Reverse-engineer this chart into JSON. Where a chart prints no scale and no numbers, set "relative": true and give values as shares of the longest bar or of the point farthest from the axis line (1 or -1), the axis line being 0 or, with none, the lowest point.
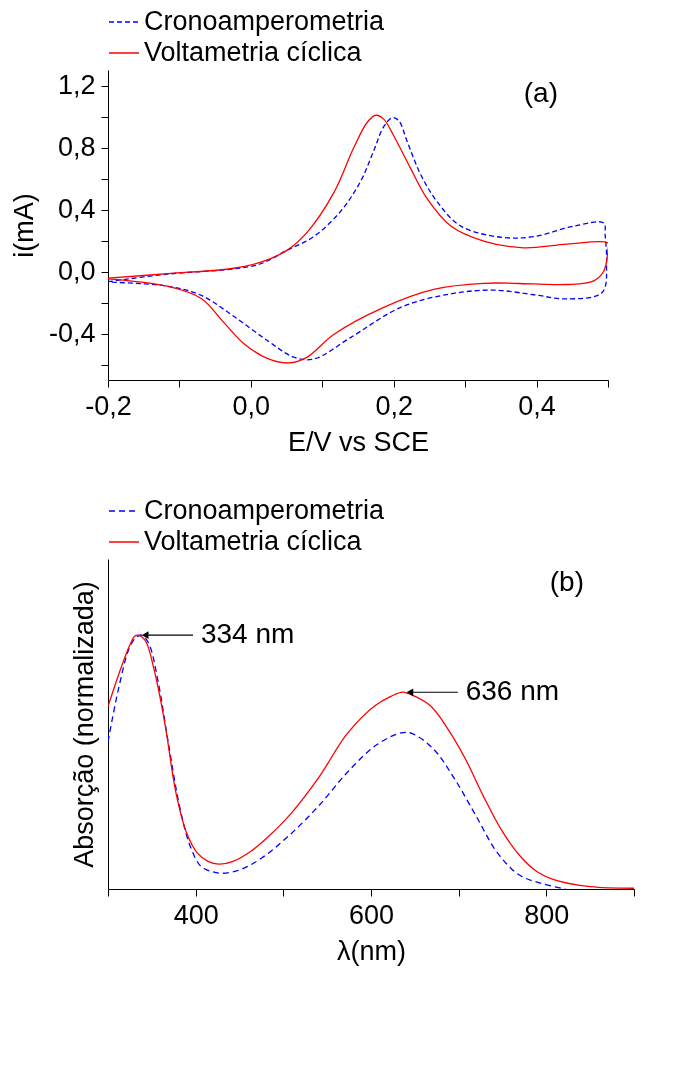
{
  "chart_data": [
    {
      "type": "line",
      "xlabel": "E/V vs SCE",
      "ylabel": "i(mA)",
      "legend": "top",
      "marker": "none",
      "grid": false,
      "xlim": [
        -0.2,
        0.5
      ],
      "ylim": [
        -0.7,
        1.3
      ],
      "xticks": [
        {
          "value": -0.2,
          "label": "-0,2"
        },
        {
          "value": -0.1,
          "label": null
        },
        {
          "value": 0,
          "label": "0,0"
        },
        {
          "value": 0.1,
          "label": null
        },
        {
          "value": 0.2,
          "label": "0,2"
        },
        {
          "value": 0.3,
          "label": null
        },
        {
          "value": 0.4,
          "label": "0,4"
        },
        {
          "value": 0.5,
          "label": null
        }
      ],
      "yticks": [
        {
          "value": -0.6,
          "label": null
        },
        {
          "value": -0.4,
          "label": "-0,4"
        },
        {
          "value": -0.2,
          "label": null
        },
        {
          "value": 0,
          "label": "0,0"
        },
        {
          "value": 0.2,
          "label": null
        },
        {
          "value": 0.4,
          "label": "0,4"
        },
        {
          "value": 0.6,
          "label": null
        },
        {
          "value": 0.8,
          "label": "0,8"
        },
        {
          "value": 1.0,
          "label": null
        },
        {
          "value": 1.2,
          "label": "1,2"
        }
      ],
      "annotations": [
        "(a)"
      ],
      "series": [
        {
          "name": "Cronoamperometria",
          "color": "#0000ff",
          "line_style": "dotted",
          "x": [
            -0.2,
            -0.117,
            -0.024,
            0.014,
            0.051,
            0.088,
            0.126,
            0.154,
            0.172,
            0.186,
            0.198,
            0.207,
            0.219,
            0.238,
            0.261,
            0.294,
            0.35,
            0.396,
            0.452,
            0.494,
            0.496,
            0.498,
            0.492,
            0.443,
            0.396,
            0.34,
            0.28,
            0.21,
            0.14,
            0.088,
            0.06,
            0.023,
            -0.024,
            -0.07,
            -0.117,
            -0.2
          ],
          "values": [
            -0.066,
            -0.017,
            0.017,
            0.05,
            0.138,
            0.225,
            0.39,
            0.585,
            0.779,
            0.934,
            0.992,
            0.973,
            0.837,
            0.623,
            0.449,
            0.293,
            0.221,
            0.225,
            0.293,
            0.313,
            0.235,
            0.06,
            -0.134,
            -0.177,
            -0.15,
            -0.12,
            -0.144,
            -0.231,
            -0.425,
            -0.565,
            -0.552,
            -0.445,
            -0.289,
            -0.153,
            -0.095,
            -0.068
          ]
        },
        {
          "name": "Voltametria cíclica",
          "color": "#ff0000",
          "line_style": "solid",
          "x": [
            -0.2,
            -0.117,
            -0.024,
            0.014,
            0.051,
            0.079,
            0.116,
            0.144,
            0.163,
            0.175,
            0.186,
            0.2,
            0.224,
            0.247,
            0.28,
            0.326,
            0.382,
            0.443,
            0.5,
            0.5,
            0.494,
            0.48,
            0.443,
            0.396,
            0.326,
            0.256,
            0.186,
            0.116,
            0.079,
            0.053,
            0.023,
            -0.01,
            -0.038,
            -0.07,
            -0.117,
            -0.2
          ],
          "values": [
            -0.043,
            -0.014,
            0.021,
            0.06,
            0.138,
            0.254,
            0.507,
            0.798,
            0.963,
            1.008,
            0.983,
            0.876,
            0.662,
            0.468,
            0.293,
            0.196,
            0.153,
            0.177,
            0.183,
            0.138,
            0.002,
            -0.06,
            -0.084,
            -0.08,
            -0.076,
            -0.115,
            -0.231,
            -0.406,
            -0.552,
            -0.59,
            -0.561,
            -0.464,
            -0.328,
            -0.173,
            -0.095,
            -0.047
          ]
        }
      ]
    },
    {
      "type": "line",
      "xlabel": "λ(nm)",
      "ylabel": "Absorção (normalizada)",
      "legend": "top",
      "marker": "none",
      "grid": false,
      "relative": true,
      "xlim": [
        300,
        900
      ],
      "xticks": [
        {
          "value": 300,
          "label": null
        },
        400,
        {
          "value": 500,
          "label": null
        },
        600,
        {
          "value": 700,
          "label": null
        },
        800,
        {
          "value": 900,
          "label": null
        }
      ],
      "annotations": [
        "(b)",
        {
          "text": "334 nm",
          "x": 334,
          "y": 1
        },
        {
          "text": "636 nm",
          "x": 636,
          "y": 0.775
        }
      ],
      "series": [
        {
          "name": "Cronoamperometria",
          "color": "#0000ff",
          "line_style": "dashed",
          "x": [
            300,
            312.2,
            324.5,
            332.6,
            338.7,
            346.9,
            357.1,
            369.3,
            381.5,
            393.8,
            406,
            418.2,
            430.4,
            450.8,
            475.3,
            507.9,
            540.5,
            573.1,
            605.7,
            634.2,
            646.5,
            670.9,
            695.3,
            719.8,
            744.3,
            768.8,
            793.2,
            821.7
          ],
          "values": [
            0.58,
            0.792,
            0.951,
            0.993,
            1.0,
            0.964,
            0.818,
            0.566,
            0.328,
            0.168,
            0.089,
            0.069,
            0.062,
            0.076,
            0.122,
            0.215,
            0.328,
            0.46,
            0.566,
            0.615,
            0.613,
            0.553,
            0.434,
            0.288,
            0.142,
            0.056,
            0.023,
            0.0
          ]
        },
        {
          "name": "Voltametria cíclica",
          "color": "#ff0000",
          "line_style": "solid",
          "x": [
            300,
            312.2,
            324.5,
            330.6,
            334.6,
            342.8,
            353,
            365.2,
            377.4,
            389.7,
            401.9,
            414,
            426.4,
            442.7,
            463,
            483.4,
            507.9,
            540.5,
            573.1,
            605.7,
            634.2,
            638.3,
            666.8,
            687.2,
            707.6,
            728,
            748.4,
            768.8,
            789.1,
            809.5,
            850.3,
            900
          ],
          "values": [
            0.719,
            0.845,
            0.958,
            0.997,
            1.0,
            0.977,
            0.858,
            0.646,
            0.381,
            0.221,
            0.142,
            0.109,
            0.098,
            0.109,
            0.149,
            0.208,
            0.294,
            0.44,
            0.613,
            0.725,
            0.775,
            0.775,
            0.725,
            0.633,
            0.513,
            0.367,
            0.235,
            0.135,
            0.069,
            0.036,
            0.009,
            0.003
          ]
        }
      ]
    }
  ]
}
